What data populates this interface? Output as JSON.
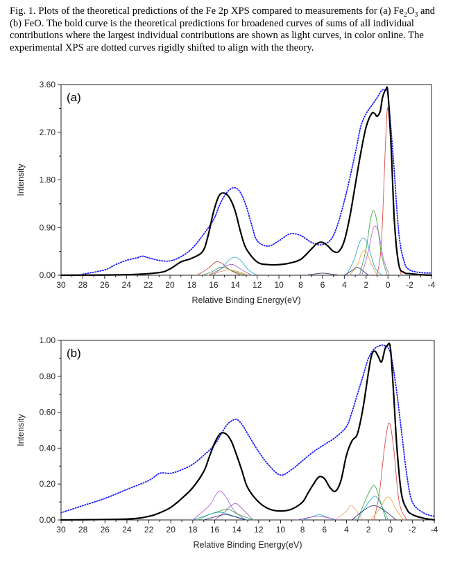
{
  "caption": {
    "p1": "Fig. 1. Plots of the theoretical predictions of the Fe 2p XPS compared to measurements for (a) Fe",
    "s1": "2",
    "p2": "O",
    "s2": "3",
    "p3": " and (b) FeO. The bold curve is the theoretical predictions for broadened curves of sums of all individual contributions where the largest individual contributions are shown as light curves, in color online. The experimental XPS are dotted curves rigidly shifted to align with the theory."
  },
  "chart_data": [
    {
      "type": "line",
      "panel_label": "(a)",
      "xlabel": "Relative Binding Energy(eV)",
      "ylabel": "Intensity",
      "xlim": [
        30,
        -4
      ],
      "ylim": [
        0,
        3.6
      ],
      "x_ticks": [
        30,
        28,
        26,
        24,
        22,
        20,
        18,
        16,
        14,
        12,
        10,
        8,
        6,
        4,
        2,
        0,
        -2,
        -4
      ],
      "x_tick_labels": [
        "30",
        "28",
        "26",
        "24",
        "22",
        "20",
        "18",
        "16",
        "14",
        "12",
        "10",
        "8",
        "6",
        "4",
        "2",
        "0",
        "-2",
        "-4"
      ],
      "y_ticks": [
        0,
        0.9,
        1.8,
        2.7,
        3.6
      ],
      "y_tick_labels": [
        "0.00",
        "0.90",
        "1.80",
        "2.70",
        "3.60"
      ],
      "series": [
        {
          "name": "experiment",
          "style": "dotted",
          "color": "#1a1aff",
          "x": [
            28,
            26,
            25,
            24,
            23,
            22.5,
            22,
            21,
            20,
            19,
            18,
            17,
            16,
            15.5,
            15,
            14.5,
            14,
            13.5,
            13,
            12.5,
            12,
            11,
            10,
            9,
            8,
            7,
            6,
            5,
            4,
            3,
            2.5,
            2,
            1.5,
            1,
            0.6,
            0.3,
            0,
            -0.5,
            -1,
            -1.5,
            -2,
            -3,
            -4
          ],
          "y": [
            0.02,
            0.1,
            0.2,
            0.28,
            0.33,
            0.36,
            0.33,
            0.28,
            0.27,
            0.35,
            0.5,
            0.75,
            1.05,
            1.3,
            1.5,
            1.62,
            1.65,
            1.55,
            1.3,
            0.95,
            0.65,
            0.55,
            0.65,
            0.78,
            0.75,
            0.62,
            0.58,
            0.75,
            1.4,
            2.3,
            2.8,
            3.05,
            3.2,
            3.35,
            3.48,
            3.5,
            3.4,
            2.2,
            0.8,
            0.25,
            0.1,
            0.05,
            0.04
          ]
        },
        {
          "name": "theory",
          "style": "bold",
          "color": "#000000",
          "x": [
            30,
            24,
            21,
            20,
            19,
            18,
            17,
            16.5,
            16,
            15.5,
            15,
            14.5,
            14,
            13.5,
            13,
            12,
            11,
            10,
            9,
            8,
            7,
            6.5,
            6,
            5.5,
            5,
            4.5,
            4,
            3.5,
            3,
            2.5,
            2,
            1.5,
            1.2,
            1,
            0.7,
            0.5,
            0.2,
            0,
            -0.3,
            -0.6,
            -1,
            -1.5,
            -2,
            -3,
            -4
          ],
          "y": [
            0,
            0.01,
            0.05,
            0.12,
            0.25,
            0.32,
            0.45,
            0.75,
            1.2,
            1.5,
            1.55,
            1.45,
            1.2,
            0.8,
            0.5,
            0.25,
            0.2,
            0.2,
            0.23,
            0.3,
            0.5,
            0.6,
            0.62,
            0.55,
            0.45,
            0.45,
            0.65,
            1.1,
            1.7,
            2.3,
            2.8,
            3.05,
            3.05,
            3.0,
            3.1,
            3.35,
            3.5,
            3.45,
            2.4,
            1.0,
            0.2,
            0.05,
            0.03,
            0.01,
            0.0
          ]
        },
        {
          "name": "c1",
          "style": "light",
          "color": "#d63a3a",
          "x": [
            1.0,
            0.6,
            0.2,
            0,
            -0.3,
            -0.7,
            -1.2
          ],
          "y": [
            0.0,
            0.6,
            2.6,
            3.15,
            2.3,
            0.6,
            0.02
          ]
        },
        {
          "name": "c2",
          "style": "light",
          "color": "#2aa02a",
          "x": [
            2.6,
            2,
            1.6,
            1.3,
            1.0,
            0.6,
            0.1
          ],
          "y": [
            0.0,
            0.5,
            1.05,
            1.22,
            1.0,
            0.4,
            0.02
          ]
        },
        {
          "name": "c3",
          "style": "light",
          "color": "#b055e0",
          "x": [
            2.4,
            1.8,
            1.4,
            1.1,
            0.8,
            0.4,
            -0.1
          ],
          "y": [
            0.0,
            0.45,
            0.85,
            0.92,
            0.75,
            0.3,
            0.02
          ]
        },
        {
          "name": "c4",
          "style": "light",
          "color": "#1aa5c8",
          "x": [
            3.8,
            3.1,
            2.6,
            2.2,
            1.8,
            1.2,
            0.6
          ],
          "y": [
            0.0,
            0.3,
            0.62,
            0.7,
            0.55,
            0.15,
            0.01
          ]
        },
        {
          "name": "c5",
          "style": "light",
          "color": "#e8a030",
          "x": [
            3.5,
            2.8,
            2.4,
            2.0,
            1.5,
            1.0
          ],
          "y": [
            0.0,
            0.2,
            0.42,
            0.45,
            0.2,
            0.01
          ]
        },
        {
          "name": "c6",
          "style": "light",
          "color": "#202060",
          "x": [
            4.0,
            3.2,
            2.8,
            2.4,
            1.8
          ],
          "y": [
            0.0,
            0.1,
            0.15,
            0.1,
            0.0
          ]
        },
        {
          "name": "c7",
          "style": "light",
          "color": "#c03030",
          "x": [
            17.5,
            16.5,
            15.8,
            15.2,
            14.5,
            13.5
          ],
          "y": [
            0.0,
            0.13,
            0.25,
            0.22,
            0.1,
            0.0
          ]
        },
        {
          "name": "c8",
          "style": "light",
          "color": "#2ab0d0",
          "x": [
            16,
            15.2,
            14.5,
            14,
            13.5,
            12.8,
            12
          ],
          "y": [
            0.0,
            0.15,
            0.3,
            0.34,
            0.28,
            0.1,
            0.0
          ]
        },
        {
          "name": "c9",
          "style": "light",
          "color": "#9050c0",
          "x": [
            16.5,
            15.5,
            14.8,
            14.2,
            13.4,
            12.5
          ],
          "y": [
            0.0,
            0.1,
            0.18,
            0.2,
            0.1,
            0.0
          ]
        },
        {
          "name": "c10",
          "style": "light",
          "color": "#30a040",
          "x": [
            17,
            16,
            15.4,
            14.8,
            14,
            13
          ],
          "y": [
            0.0,
            0.08,
            0.15,
            0.13,
            0.06,
            0.0
          ]
        },
        {
          "name": "c11",
          "style": "light",
          "color": "#e09030",
          "x": [
            16.5,
            15.5,
            14.6,
            13.8,
            12.8
          ],
          "y": [
            0.0,
            0.06,
            0.1,
            0.07,
            0.0
          ]
        },
        {
          "name": "c12",
          "style": "light",
          "color": "#202060",
          "x": [
            7.5,
            6.5,
            6.0,
            5.5,
            4.5
          ],
          "y": [
            0.0,
            0.03,
            0.04,
            0.03,
            0.0
          ]
        }
      ]
    },
    {
      "type": "line",
      "panel_label": "(b)",
      "xlabel": "Relative Binding Energy(eV)",
      "ylabel": "Intensity",
      "xlim": [
        30,
        -4
      ],
      "ylim": [
        0,
        1.0
      ],
      "x_ticks": [
        30,
        28,
        26,
        24,
        22,
        20,
        18,
        16,
        14,
        12,
        10,
        8,
        6,
        4,
        2,
        0,
        -2,
        -4
      ],
      "x_tick_labels": [
        "30",
        "28",
        "26",
        "24",
        "22",
        "20",
        "18",
        "16",
        "14",
        "12",
        "10",
        "8",
        "6",
        "4",
        "2",
        "0",
        "-2",
        "-4"
      ],
      "y_ticks": [
        0,
        0.2,
        0.4,
        0.6,
        0.8,
        1.0
      ],
      "y_tick_labels": [
        "0.00",
        "0.20",
        "0.40",
        "0.60",
        "0.80",
        "1.00"
      ],
      "series": [
        {
          "name": "experiment",
          "style": "dotted",
          "color": "#1a1aff",
          "x": [
            30,
            28,
            26,
            24,
            22,
            21,
            20,
            19,
            18,
            17,
            16,
            15,
            14.5,
            14,
            13.5,
            13,
            12,
            11,
            10,
            9,
            8,
            7,
            6,
            5,
            4,
            3.5,
            3,
            2.5,
            2,
            1.5,
            1,
            0.5,
            0,
            -0.5,
            -1,
            -1.5,
            -2,
            -3,
            -4
          ],
          "y": [
            0.04,
            0.08,
            0.12,
            0.17,
            0.22,
            0.26,
            0.26,
            0.28,
            0.31,
            0.36,
            0.42,
            0.52,
            0.55,
            0.56,
            0.53,
            0.48,
            0.38,
            0.3,
            0.25,
            0.28,
            0.33,
            0.38,
            0.42,
            0.46,
            0.52,
            0.6,
            0.7,
            0.8,
            0.9,
            0.95,
            0.97,
            0.97,
            0.93,
            0.75,
            0.5,
            0.25,
            0.1,
            0.04,
            0.02
          ]
        },
        {
          "name": "theory",
          "style": "bold",
          "color": "#000000",
          "x": [
            30,
            24,
            22,
            21,
            20,
            19,
            18,
            17,
            16.5,
            16,
            15.5,
            15,
            14.5,
            14,
            13.5,
            13,
            12,
            11,
            10,
            9,
            8,
            7.5,
            7,
            6.5,
            6,
            5.5,
            5,
            4.5,
            4,
            3.5,
            3,
            2.5,
            2,
            1.7,
            1.4,
            1.1,
            0.8,
            0.5,
            0.3,
            0,
            -0.3,
            -0.6,
            -1,
            -1.5,
            -2,
            -3,
            -4
          ],
          "y": [
            0,
            0.005,
            0.02,
            0.04,
            0.07,
            0.12,
            0.18,
            0.27,
            0.35,
            0.43,
            0.48,
            0.48,
            0.44,
            0.36,
            0.27,
            0.18,
            0.1,
            0.06,
            0.05,
            0.06,
            0.1,
            0.15,
            0.2,
            0.24,
            0.23,
            0.18,
            0.16,
            0.22,
            0.36,
            0.44,
            0.48,
            0.62,
            0.82,
            0.92,
            0.94,
            0.91,
            0.88,
            0.95,
            0.97,
            0.96,
            0.7,
            0.4,
            0.15,
            0.06,
            0.03,
            0.01,
            0.0
          ]
        },
        {
          "name": "c1",
          "style": "light",
          "color": "#d63a3a",
          "x": [
            1.5,
            1.0,
            0.5,
            0.1,
            -0.3,
            -0.8,
            -1.5
          ],
          "y": [
            0.0,
            0.15,
            0.42,
            0.54,
            0.4,
            0.1,
            0.0
          ]
        },
        {
          "name": "c2",
          "style": "light",
          "color": "#2aa02a",
          "x": [
            3,
            2.2,
            1.7,
            1.4,
            1.0,
            0.4
          ],
          "y": [
            0.0,
            0.12,
            0.18,
            0.19,
            0.12,
            0.0
          ]
        },
        {
          "name": "c3",
          "style": "light",
          "color": "#1aa5c8",
          "x": [
            3,
            2.2,
            1.7,
            1.3,
            0.8,
            0.2
          ],
          "y": [
            0.0,
            0.08,
            0.12,
            0.13,
            0.08,
            0.0
          ]
        },
        {
          "name": "c4",
          "style": "light",
          "color": "#e8a030",
          "x": [
            1.8,
            1.0,
            0.4,
            0.0,
            -0.5,
            -1.2
          ],
          "y": [
            0.0,
            0.06,
            0.12,
            0.12,
            0.06,
            0.0
          ]
        },
        {
          "name": "c5",
          "style": "light",
          "color": "#e8a080",
          "x": [
            5,
            4.0,
            3.6,
            3.2,
            2.5
          ],
          "y": [
            0.0,
            0.05,
            0.08,
            0.06,
            0.0
          ]
        },
        {
          "name": "c6",
          "style": "light",
          "color": "#202060",
          "x": [
            3.5,
            2.5,
            1.5,
            0.5,
            -0.5
          ],
          "y": [
            0.0,
            0.05,
            0.08,
            0.05,
            0.0
          ]
        },
        {
          "name": "c7",
          "style": "light",
          "color": "#b055e0",
          "x": [
            18,
            16.5,
            15.9,
            15.5,
            15.0,
            14.2,
            13.2
          ],
          "y": [
            0.0,
            0.08,
            0.14,
            0.16,
            0.13,
            0.05,
            0.0
          ]
        },
        {
          "name": "c8",
          "style": "light",
          "color": "#9050c0",
          "x": [
            16,
            15,
            14.5,
            14.0,
            13.3,
            12.5
          ],
          "y": [
            0.0,
            0.05,
            0.08,
            0.09,
            0.05,
            0.0
          ]
        },
        {
          "name": "c9",
          "style": "light",
          "color": "#2aa02a",
          "x": [
            17.5,
            16.5,
            15.5,
            14.8,
            13.8,
            12.5
          ],
          "y": [
            0.0,
            0.03,
            0.05,
            0.06,
            0.03,
            0.0
          ]
        },
        {
          "name": "c10",
          "style": "light",
          "color": "#1aa5c8",
          "x": [
            18,
            17,
            16,
            15.2,
            14.2,
            13
          ],
          "y": [
            0.0,
            0.02,
            0.04,
            0.04,
            0.02,
            0.0
          ]
        },
        {
          "name": "c11",
          "style": "light",
          "color": "#202060",
          "x": [
            17,
            15.8,
            15,
            14.3,
            13.2
          ],
          "y": [
            0.0,
            0.02,
            0.03,
            0.02,
            0.0
          ]
        },
        {
          "name": "c12",
          "style": "light",
          "color": "#1aa5c8",
          "x": [
            8,
            7,
            6.5,
            6.0,
            5.0
          ],
          "y": [
            0.0,
            0.02,
            0.03,
            0.02,
            0.0
          ]
        },
        {
          "name": "c13",
          "style": "light",
          "color": "#b055e0",
          "x": [
            8.5,
            7.3,
            6.6,
            5.9,
            4.8
          ],
          "y": [
            0.0,
            0.015,
            0.02,
            0.015,
            0.0
          ]
        }
      ]
    }
  ]
}
